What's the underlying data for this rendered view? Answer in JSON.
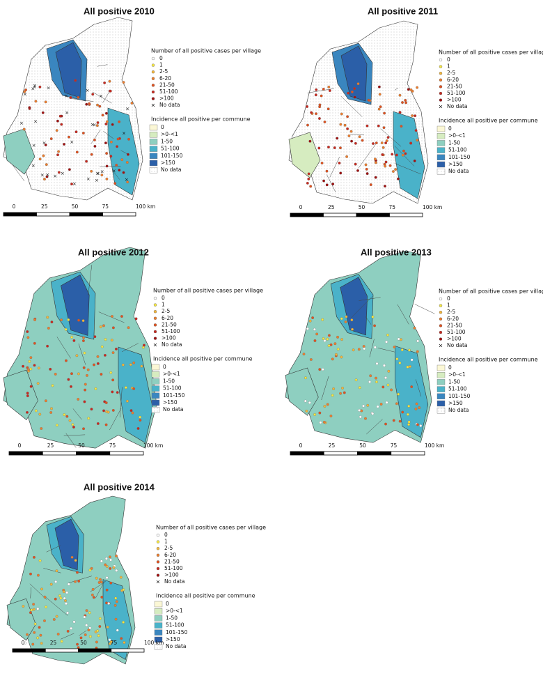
{
  "panels": [
    {
      "title": "All positive 2010",
      "village_legend": {
        "title": "Number of all positive cases per village",
        "items": [
          "0",
          "1",
          "2-5",
          "6-20",
          "21-50",
          "51-100",
          ">100",
          "No data"
        ]
      },
      "commune_legend": {
        "title": "Incidence all positive per commune",
        "items": [
          "0",
          ">0-<1",
          "1-50",
          "51-100",
          "101-150",
          ">150",
          "No data"
        ]
      },
      "scale": [
        "0",
        "25",
        "50",
        "75",
        "100 km"
      ]
    },
    {
      "title": "All positive 2011",
      "village_legend": {
        "title": "Number of all positive cases per village",
        "items": [
          "0",
          "1",
          "2-5",
          "6-20",
          "21-50",
          "51-100",
          ">100",
          "No data"
        ]
      },
      "commune_legend": {
        "title": "Incidence all positive per commune",
        "items": [
          "0",
          ">0-<1",
          "1-50",
          "51-100",
          "101-150",
          ">150",
          "No data"
        ]
      },
      "scale": [
        "0",
        "25",
        "50",
        "75",
        "100 km"
      ]
    },
    {
      "title": "All positive 2012",
      "village_legend": {
        "title": "Number of all positive cases per village",
        "items": [
          "0",
          "1",
          "2-5",
          "6-20",
          "21-50",
          "51-100",
          ">100",
          "No data"
        ]
      },
      "commune_legend": {
        "title": "Incidence all positive per commune",
        "items": [
          "0",
          ">0-<1",
          "1-50",
          "51-100",
          "101-150",
          ">150",
          "No data"
        ]
      },
      "scale": [
        "0",
        "25",
        "50",
        "75",
        "100 km"
      ]
    },
    {
      "title": "All positive 2013",
      "village_legend": {
        "title": "Number of all positive cases per village",
        "items": [
          "0",
          "1",
          "2-5",
          "6-20",
          "21-50",
          "51-100",
          ">100",
          "No data"
        ]
      },
      "commune_legend": {
        "title": "Incidence all positive per commune",
        "items": [
          "0",
          ">0-<1",
          "1-50",
          "51-100",
          "101-150",
          ">150",
          "No data"
        ]
      },
      "scale": [
        "0",
        "25",
        "50",
        "75",
        "100 km"
      ]
    },
    {
      "title": "All positive 2014",
      "village_legend": {
        "title": "Number of all positive cases per village",
        "items": [
          "0",
          "1",
          "2-5",
          "6-20",
          "21-50",
          "51-100",
          ">100",
          "No data"
        ]
      },
      "commune_legend": {
        "title": "Incidence all positive per commune",
        "items": [
          "0",
          ">0-<1",
          "1-50",
          "51-100",
          "101-150",
          ">150",
          "No data"
        ]
      },
      "scale": [
        "0",
        "25",
        "50",
        "75",
        "100 km"
      ]
    }
  ]
}
